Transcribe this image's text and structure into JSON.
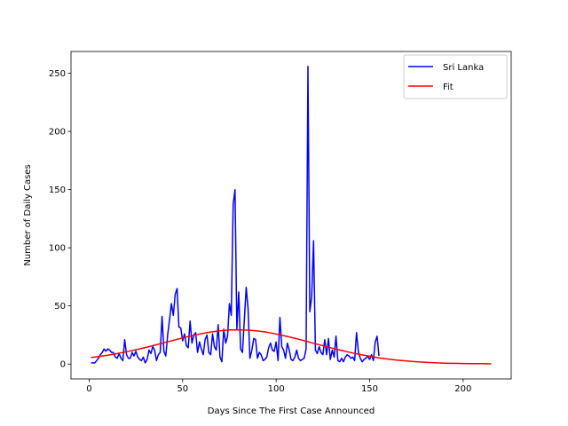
{
  "chart_data": {
    "type": "line",
    "title": "",
    "xlabel": "Days Since The First Case Announced",
    "ylabel": "Number of Daily Cases",
    "xlim": [
      -9.7,
      225.7
    ],
    "ylim": [
      -12.8,
      268.8
    ],
    "xticks": [
      0,
      50,
      100,
      150,
      200
    ],
    "yticks": [
      0,
      50,
      100,
      150,
      200,
      250
    ],
    "grid": false,
    "legend_position": "top-right",
    "series": [
      {
        "name": "Sri Lanka",
        "color": "#0000ff",
        "x": [
          1,
          2,
          3,
          4,
          5,
          6,
          7,
          8,
          9,
          10,
          11,
          12,
          13,
          14,
          15,
          16,
          17,
          18,
          19,
          20,
          21,
          22,
          23,
          24,
          25,
          26,
          27,
          28,
          29,
          30,
          31,
          32,
          33,
          34,
          35,
          36,
          37,
          38,
          39,
          40,
          41,
          42,
          43,
          44,
          45,
          46,
          47,
          48,
          49,
          50,
          51,
          52,
          53,
          54,
          55,
          56,
          57,
          58,
          59,
          60,
          61,
          62,
          63,
          64,
          65,
          66,
          67,
          68,
          69,
          70,
          71,
          72,
          73,
          74,
          75,
          76,
          77,
          78,
          79,
          80,
          81,
          82,
          83,
          84,
          85,
          86,
          87,
          88,
          89,
          90,
          91,
          92,
          93,
          94,
          95,
          96,
          97,
          98,
          99,
          100,
          101,
          102,
          103,
          104,
          105,
          106,
          107,
          108,
          109,
          110,
          111,
          112,
          113,
          114,
          115,
          116,
          117,
          118,
          119,
          120,
          121,
          122,
          123,
          124,
          125,
          126,
          127,
          128,
          129,
          130,
          131,
          132,
          133,
          134,
          135,
          136,
          137,
          138,
          139,
          140,
          141,
          142,
          143,
          144,
          145,
          146,
          147,
          148,
          149,
          150,
          151,
          152,
          153,
          154,
          155
        ],
        "y": [
          1,
          1,
          1,
          3,
          5,
          8,
          10,
          13,
          11,
          13,
          12,
          10,
          10,
          6,
          5,
          9,
          5,
          3,
          21,
          8,
          5,
          5,
          10,
          7,
          11,
          6,
          4,
          3,
          6,
          1,
          4,
          12,
          9,
          15,
          12,
          3,
          8,
          10,
          41,
          11,
          7,
          25,
          38,
          52,
          42,
          60,
          65,
          32,
          31,
          20,
          26,
          16,
          14,
          37,
          18,
          25,
          27,
          10,
          19,
          13,
          8,
          21,
          25,
          10,
          8,
          26,
          15,
          12,
          34,
          6,
          2,
          30,
          18,
          24,
          52,
          42,
          137,
          150,
          30,
          62,
          13,
          10,
          38,
          66,
          48,
          5,
          12,
          22,
          21,
          5,
          10,
          8,
          3,
          4,
          6,
          14,
          18,
          12,
          11,
          19,
          3,
          40,
          15,
          12,
          5,
          18,
          12,
          4,
          3,
          6,
          12,
          5,
          3,
          4,
          5,
          13,
          256,
          45,
          58,
          106,
          12,
          9,
          15,
          10,
          8,
          21,
          8,
          22,
          4,
          12,
          6,
          24,
          3,
          2,
          5,
          2,
          6,
          8,
          7,
          5,
          6,
          3,
          27,
          10,
          5,
          2,
          4,
          5,
          7,
          4,
          8,
          3,
          19,
          24,
          7
        ]
      },
      {
        "name": "Fit",
        "color": "#ff0000",
        "x": [
          1,
          5,
          10,
          15,
          20,
          25,
          30,
          35,
          40,
          45,
          50,
          55,
          60,
          65,
          70,
          75,
          80,
          85,
          90,
          95,
          100,
          105,
          110,
          115,
          120,
          125,
          130,
          135,
          140,
          145,
          150,
          155,
          160,
          165,
          170,
          175,
          180,
          185,
          190,
          195,
          200,
          205,
          210,
          215
        ],
        "y": [
          5.6,
          6.4,
          7.6,
          9.0,
          10.6,
          12.3,
          14.2,
          16.2,
          18.3,
          20.4,
          22.5,
          24.4,
          26.1,
          27.6,
          28.6,
          29.3,
          29.5,
          29.2,
          28.5,
          27.4,
          25.9,
          24.1,
          22.2,
          20.1,
          17.9,
          15.8,
          13.7,
          11.7,
          9.9,
          8.2,
          6.7,
          5.4,
          4.3,
          3.3,
          2.6,
          2.0,
          1.5,
          1.1,
          0.8,
          0.6,
          0.5,
          0.4,
          0.3,
          0.2
        ]
      }
    ]
  }
}
